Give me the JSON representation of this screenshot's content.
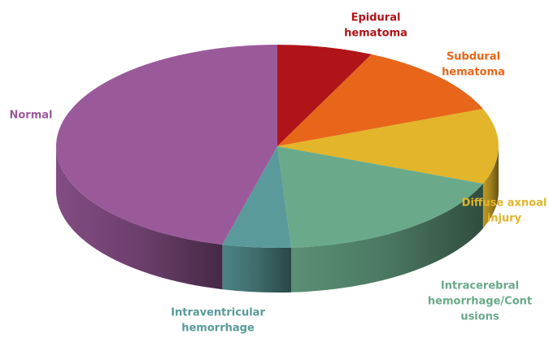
{
  "chart_data": {
    "type": "pie3d",
    "categories": [
      [
        "Epidural",
        "hematoma"
      ],
      [
        "Subdural",
        "hematoma"
      ],
      [
        "Diffuse axnoal",
        "injury"
      ],
      [
        "Intracerebral",
        "hemorrhage/Cont",
        "usions"
      ],
      [
        "Intraventricular",
        "hemorrhage"
      ],
      [
        "Normal"
      ]
    ],
    "values": [
      7,
      12,
      12,
      18,
      5,
      46
    ],
    "colors": [
      "#b01418",
      "#e8661a",
      "#e2b52a",
      "#6aaa8a",
      "#5a9a9a",
      "#9a5a9a"
    ]
  }
}
